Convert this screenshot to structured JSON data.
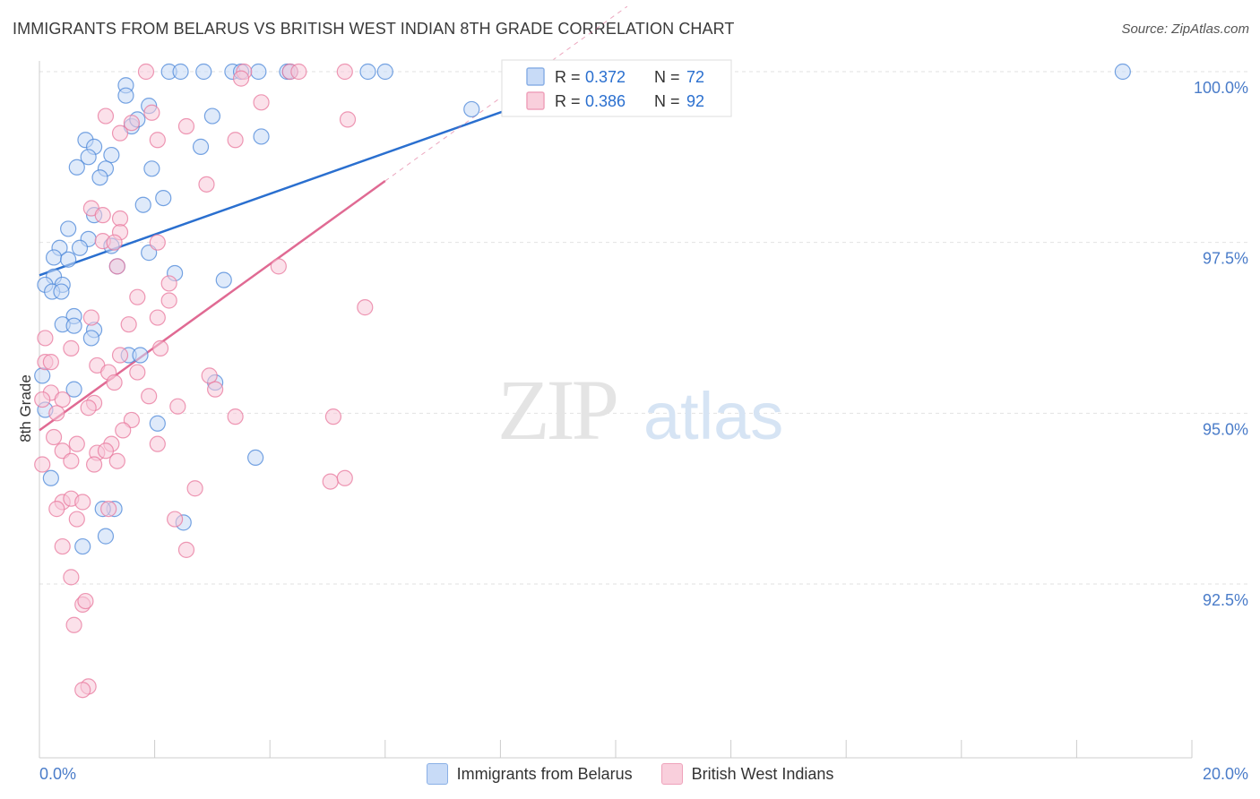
{
  "title": "IMMIGRANTS FROM BELARUS VS BRITISH WEST INDIAN 8TH GRADE CORRELATION CHART",
  "source": "Source: ZipAtlas.com",
  "watermark": {
    "zip": "ZIP",
    "atlas": "atlas"
  },
  "colors": {
    "blue": "#4a86d8",
    "blue_fill": "#c4d8f6",
    "blue_line": "#2a6fcf",
    "pink": "#e8779c",
    "pink_fill": "#f8c8d8",
    "pink_line": "#e06a93",
    "tick_label": "#4a7cc9"
  },
  "chart_data": {
    "type": "scatter",
    "xlabel": "",
    "ylabel": "8th Grade",
    "x_tick_labels": [
      "0.0%",
      "20.0%"
    ],
    "y_tick_labels": [
      "100.0%",
      "97.5%",
      "95.0%",
      "92.5%"
    ],
    "y_ticks": [
      100.0,
      97.5,
      95.0,
      92.5
    ],
    "xlim": [
      0,
      20
    ],
    "ylim": [
      90.2,
      100.22
    ],
    "legend_box": [
      {
        "r_label": "R =",
        "r_value": "0.372",
        "n_label": "N =",
        "n_value": "72"
      },
      {
        "r_label": "R =",
        "r_value": "0.386",
        "n_label": "N =",
        "n_value": "92"
      }
    ],
    "series": [
      {
        "name": "Immigrants from Belarus",
        "color": "blue",
        "trend": {
          "x0": 0,
          "y0": 97.02,
          "x1": 10,
          "y1": 100.0,
          "dash_to_x": 10.2
        },
        "points": [
          [
            2.25,
            100.0
          ],
          [
            2.45,
            100.0
          ],
          [
            2.85,
            100.0
          ],
          [
            3.35,
            100.0
          ],
          [
            3.5,
            100.0
          ],
          [
            3.8,
            100.0
          ],
          [
            4.3,
            100.0
          ],
          [
            4.35,
            100.0
          ],
          [
            5.7,
            100.0
          ],
          [
            6.0,
            100.0
          ],
          [
            18.8,
            100.0
          ],
          [
            1.5,
            99.8
          ],
          [
            1.5,
            99.65
          ],
          [
            1.9,
            99.5
          ],
          [
            7.5,
            99.45
          ],
          [
            3.0,
            99.35
          ],
          [
            1.6,
            99.2
          ],
          [
            1.7,
            99.3
          ],
          [
            0.8,
            99.0
          ],
          [
            0.95,
            98.9
          ],
          [
            3.85,
            99.05
          ],
          [
            2.8,
            98.9
          ],
          [
            0.85,
            98.75
          ],
          [
            1.25,
            98.78
          ],
          [
            0.65,
            98.6
          ],
          [
            1.15,
            98.58
          ],
          [
            1.95,
            98.58
          ],
          [
            1.05,
            98.45
          ],
          [
            2.15,
            98.15
          ],
          [
            1.8,
            98.05
          ],
          [
            0.95,
            97.9
          ],
          [
            0.5,
            97.7
          ],
          [
            0.85,
            97.55
          ],
          [
            0.35,
            97.42
          ],
          [
            0.7,
            97.42
          ],
          [
            1.25,
            97.45
          ],
          [
            1.9,
            97.35
          ],
          [
            0.25,
            97.28
          ],
          [
            0.5,
            97.25
          ],
          [
            1.35,
            97.15
          ],
          [
            0.25,
            97.0
          ],
          [
            2.35,
            97.05
          ],
          [
            3.2,
            96.95
          ],
          [
            0.1,
            96.88
          ],
          [
            0.4,
            96.88
          ],
          [
            0.22,
            96.78
          ],
          [
            0.38,
            96.78
          ],
          [
            0.6,
            96.42
          ],
          [
            0.4,
            96.3
          ],
          [
            0.6,
            96.28
          ],
          [
            0.95,
            96.22
          ],
          [
            0.9,
            96.1
          ],
          [
            1.55,
            95.85
          ],
          [
            1.75,
            95.85
          ],
          [
            3.05,
            95.45
          ],
          [
            0.6,
            95.35
          ],
          [
            0.05,
            95.55
          ],
          [
            0.1,
            95.05
          ],
          [
            2.05,
            94.85
          ],
          [
            3.75,
            94.35
          ],
          [
            0.2,
            94.05
          ],
          [
            1.3,
            93.6
          ],
          [
            1.1,
            93.6
          ],
          [
            2.5,
            93.4
          ],
          [
            1.15,
            93.2
          ],
          [
            0.75,
            93.05
          ]
        ]
      },
      {
        "name": "British West Indians",
        "color": "pink",
        "trend": {
          "x0": 0,
          "y0": 94.75,
          "x1": 6.0,
          "y1": 98.4
        },
        "points": [
          [
            1.85,
            100.0
          ],
          [
            3.55,
            100.0
          ],
          [
            4.35,
            100.0
          ],
          [
            4.5,
            100.0
          ],
          [
            5.3,
            100.0
          ],
          [
            3.5,
            99.9
          ],
          [
            3.85,
            99.55
          ],
          [
            1.95,
            99.4
          ],
          [
            1.15,
            99.35
          ],
          [
            1.6,
            99.25
          ],
          [
            2.55,
            99.2
          ],
          [
            5.35,
            99.3
          ],
          [
            1.4,
            99.1
          ],
          [
            2.05,
            99.0
          ],
          [
            3.4,
            99.0
          ],
          [
            2.9,
            98.35
          ],
          [
            0.9,
            98.0
          ],
          [
            1.1,
            97.9
          ],
          [
            1.4,
            97.85
          ],
          [
            1.4,
            97.65
          ],
          [
            1.1,
            97.52
          ],
          [
            1.3,
            97.5
          ],
          [
            2.05,
            97.5
          ],
          [
            1.35,
            97.15
          ],
          [
            4.15,
            97.15
          ],
          [
            2.25,
            96.9
          ],
          [
            1.7,
            96.7
          ],
          [
            2.25,
            96.65
          ],
          [
            5.65,
            96.55
          ],
          [
            0.9,
            96.4
          ],
          [
            1.55,
            96.3
          ],
          [
            2.05,
            96.4
          ],
          [
            0.1,
            96.1
          ],
          [
            0.55,
            95.95
          ],
          [
            2.1,
            95.95
          ],
          [
            1.4,
            95.85
          ],
          [
            0.1,
            95.75
          ],
          [
            0.2,
            95.75
          ],
          [
            1.0,
            95.7
          ],
          [
            1.2,
            95.6
          ],
          [
            1.7,
            95.6
          ],
          [
            2.95,
            95.55
          ],
          [
            1.3,
            95.45
          ],
          [
            3.05,
            95.35
          ],
          [
            0.2,
            95.3
          ],
          [
            0.05,
            95.2
          ],
          [
            0.4,
            95.2
          ],
          [
            1.9,
            95.25
          ],
          [
            0.95,
            95.15
          ],
          [
            0.85,
            95.08
          ],
          [
            2.4,
            95.1
          ],
          [
            0.3,
            95.0
          ],
          [
            1.6,
            94.9
          ],
          [
            3.4,
            94.95
          ],
          [
            5.1,
            94.95
          ],
          [
            1.45,
            94.75
          ],
          [
            0.25,
            94.65
          ],
          [
            2.05,
            94.55
          ],
          [
            0.65,
            94.55
          ],
          [
            1.25,
            94.55
          ],
          [
            0.4,
            94.45
          ],
          [
            1.0,
            94.42
          ],
          [
            1.15,
            94.45
          ],
          [
            0.05,
            94.25
          ],
          [
            0.55,
            94.3
          ],
          [
            1.35,
            94.3
          ],
          [
            0.95,
            94.25
          ],
          [
            5.05,
            94.0
          ],
          [
            5.3,
            94.05
          ],
          [
            2.7,
            93.9
          ],
          [
            0.4,
            93.7
          ],
          [
            0.55,
            93.75
          ],
          [
            0.75,
            93.7
          ],
          [
            1.2,
            93.6
          ],
          [
            0.3,
            93.6
          ],
          [
            0.65,
            93.45
          ],
          [
            2.35,
            93.45
          ],
          [
            0.4,
            93.05
          ],
          [
            2.55,
            93.0
          ],
          [
            0.55,
            92.6
          ],
          [
            0.75,
            92.2
          ],
          [
            0.6,
            91.9
          ],
          [
            0.8,
            92.25
          ],
          [
            0.85,
            91.0
          ],
          [
            0.75,
            90.95
          ]
        ]
      }
    ]
  }
}
